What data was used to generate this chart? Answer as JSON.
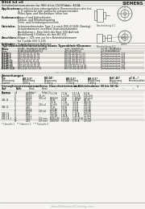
{
  "bg_color": "#f5f4f0",
  "dark_color": "#1a1a1a",
  "mid_color": "#444444",
  "light_color": "#888888",
  "highlight_color": "#b8b4ac",
  "watermark_color": "#aaaaaa",
  "title_left": "BSt4 h4 e6",
  "title_right": "SIEMENS",
  "header_text": "Schalenbremsmotoren fur 960 d bis 1500/V;  I    = 460A",
  "sections": [
    [
      "Application:",
      "einschliesslichen robustgefuhrte Dimensionlinen dies list,\n4- 8 zahlreiche oder polnische entsprechenden\nMilan-Spar- und Steckelduse-lellen von"
    ],
    [
      "Funkmasse:",
      "Einwurf und Halterklinden,\nEdition- und Mitarbeitsparing\nDreh- und Schattungsverschieb"
    ],
    [
      "Getriebe:",
      "Schmierenbrustuder Type 2 n nach DIN 43 848 (Streitig),\nSchalenbremsen verzittert Dransitionlufunden\nAusfullunng c. 8ten folch des Best 500 Auftrieb\nAusfullunng 3 Einfluss als den BS 961"
    ],
    [
      "Anschluss:",
      "Klippe c. 025 mm zur fern Betriebsklimmaren\nfur 1 polde 600 1-145"
    ],
    [
      "Fubleder:",
      "Schalenbremsen Auftrepa"
    ]
  ],
  "type_table_title": "Typ-Oberbeflidenansetzung sowie Typenblatt-Klemme:",
  "type_table_cols": [
    "Pmax",
    "BStM5 / BStM6450 BStM55",
    "d,0/5 / BStM75/L5",
    "d,0 85 / BStM90/L5"
  ],
  "type_rows": [
    [
      "BStM 5",
      "B5G-50-40-51 15 Be",
      "BH 86-40-40-13 23",
      "Drehstrommotors 132"
    ],
    [
      "BStM 6",
      "B5G-60-40-60-15 21",
      "BH 94-42-40-14 53",
      "Drehstrommotors 143"
    ],
    [
      "BStM 7",
      "B5G-70-50-70-15 23",
      "BH 98-44-50-15 63",
      "Drehstrommotors 154"
    ],
    [
      "BStM 55",
      "B5G-50-45-51-15-31",
      "BH 86-40-40-13 33",
      "Drehstrommotors 165"
    ],
    [
      "BStM 75",
      "B5G-75-55-75-16 34",
      "BH 98-44-52-17 72",
      "Drehstrommotors 176"
    ],
    [
      "BStM 90",
      "B5G-90-60-90-16 45",
      "BH 105-46-54-18 82",
      "Drehstrommotors 187"
    ],
    [
      "BStM 110",
      "B5G-110-70-10-17 56",
      "BH 115-50-58-19 93",
      "Drehstrommotors 198"
    ]
  ],
  "watermark1": "www.datasheetcatalog.com",
  "anm_title": "Anmerkungen",
  "anm_cols": [
    "Typ",
    "BR 0,5*",
    "BR 04*",
    "BR 0,5*",
    "BR 0,5*",
    "BdC 40*",
    "eC H...*"
  ],
  "anm_row1": [
    "Abmessung",
    "Abmessung",
    "Abmessung",
    "Abmessung",
    "Abmessung",
    "Kennlinienblatt"
  ],
  "anm_row2": [
    "Gewicht",
    "4500 g",
    "O.500 g",
    "2.700 g",
    "3.400 g",
    "3.750 g",
    "-"
  ],
  "grenz_title": "Grenzphasenstrommasse I     trans. Dauerbetriebstrome I     Betriebsdaten 50 bis 60 Hz",
  "grenz_cols": [
    "Stuf-Bremsp.",
    "Ballraum I",
    "Schalungs-\nFolge I",
    "Schalungs-\nFolge 2"
  ],
  "btable_groups": [
    {
      "name": "4W 23",
      "rows": [
        [
          "",
          "0",
          "4.0/11",
          "-",
          "11.2 A",
          "7.1 A",
          "12.1 A",
          "6.0 A",
          "1.2-2e4"
        ],
        [
          "",
          "3",
          "6.0/14",
          "25 v4",
          "",
          "1.1.3 A",
          "1.0.3 A",
          "1.20-2e4"
        ],
        [
          "",
          "5",
          "5.0/18",
          "300 v4",
          "1300-60",
          "7.3 A",
          "1.300 A",
          "1.25-2e4"
        ]
      ]
    },
    {
      "name": "4W 24",
      "rows": [
        [
          "",
          "0",
          "4.0/11",
          "-",
          "41 A",
          "41 A",
          "1.40 A",
          "4.0-16"
        ],
        [
          "",
          "3",
          "4.5/14",
          "-",
          "4.0 A",
          "1.1 A",
          "4.4 A",
          "4.04-16"
        ],
        [
          "",
          "5",
          "5.0/18",
          "260 v4",
          "1.5+60",
          "1.3.0 A",
          "4.0 A",
          "4.25-16"
        ]
      ]
    },
    {
      "name": "4W 12",
      "rows": [
        [
          "",
          "0",
          "4.4/1",
          "-",
          "47 A",
          "8.8 A",
          "4.4 A",
          "1.25-46"
        ],
        [
          "",
          "3",
          "5.5/14",
          "-",
          "220 40",
          "2.8 A",
          "4.4 A",
          "1.25-46"
        ],
        [
          "",
          "5",
          "5.0/18",
          "250 k4",
          "1.5+45",
          "1.1 A",
          "1.9 A",
          "1.25-46"
        ]
      ]
    },
    {
      "name": "4W 1.5",
      "rows": [
        [
          "",
          "0",
          "4.0/1",
          "-",
          "1.02-40",
          "1.1 A",
          "1.34 A",
          "1.50-44"
        ]
      ]
    },
    {
      "name": "4W 1.8",
      "rows": [
        [
          "",
          "0",
          "5.0/11",
          "-",
          "200 48",
          "140 A",
          "1.16 A",
          "1.2-0e4"
        ]
      ]
    },
    {
      "name": "6W 1.8-1",
      "rows": [
        [
          "",
          "20",
          "4.2/11",
          "2.0 secs",
          "10000-40",
          "5.4.0 A",
          "2.01-00 A",
          "2.0-4e4"
        ],
        [
          "",
          "40",
          "4.2/1",
          "4.0 secs",
          "2400 60",
          "5.0.0 A",
          "2.15 A",
          "2.05-44"
        ]
      ]
    }
  ],
  "footer_notes": "* Fubnotle 1   ** Fubnotle 2   *** Fubnotle 3",
  "watermark2": "www.DatasheetCatalog.com"
}
